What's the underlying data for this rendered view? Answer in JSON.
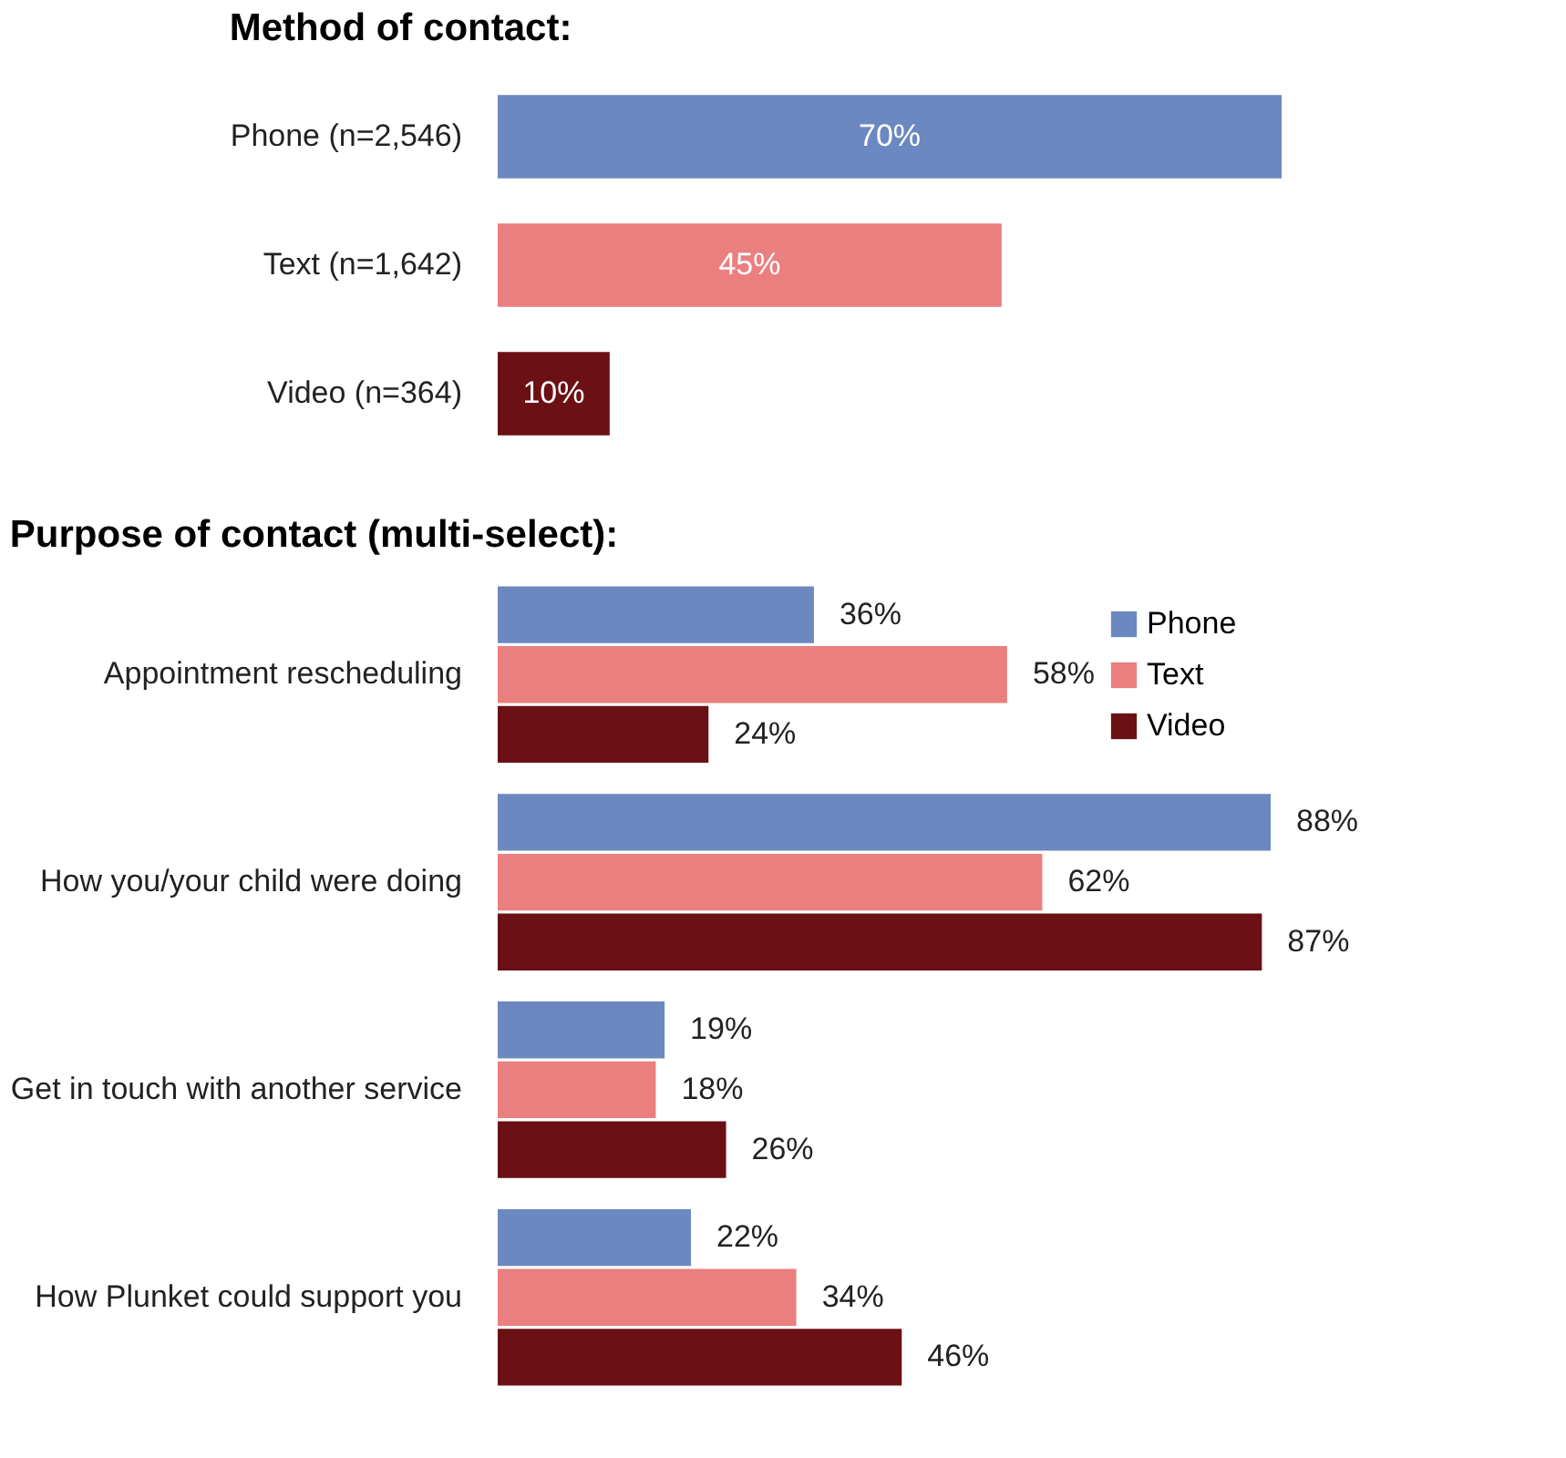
{
  "chart_data": [
    {
      "type": "bar",
      "orientation": "horizontal",
      "title": "Method of contact:",
      "categories": [
        "Phone (n=2,546)",
        "Text (n=1,642)",
        "Video (n=364)"
      ],
      "values": [
        70,
        45,
        10
      ],
      "colors": [
        "#6b88c0",
        "#eb7f7f",
        "#6b1014"
      ],
      "data_labels": true,
      "value_labels": [
        "70%",
        "45%",
        "10%"
      ],
      "legend": false,
      "grid": false
    },
    {
      "type": "bar",
      "orientation": "horizontal",
      "title": "Purpose of contact (multi-select):",
      "categories": [
        "Appointment rescheduling",
        "How you/your child were doing",
        "Get in touch with another service",
        "How Plunket could support you"
      ],
      "legend": "top right",
      "grid": false,
      "data_labels": true,
      "series": [
        {
          "name": "Phone",
          "color": "#6b88c0",
          "values": [
            36,
            88,
            19,
            22
          ],
          "value_labels": [
            "36%",
            "88%",
            "19%",
            "22%"
          ]
        },
        {
          "name": "Text",
          "color": "#eb7f7f",
          "values": [
            58,
            62,
            18,
            34
          ],
          "value_labels": [
            "58%",
            "62%",
            "18%",
            "34%"
          ]
        },
        {
          "name": "Video",
          "color": "#6b1014",
          "values": [
            24,
            87,
            26,
            46
          ],
          "value_labels": [
            "24%",
            "87%",
            "26%",
            "46%"
          ]
        }
      ]
    }
  ]
}
